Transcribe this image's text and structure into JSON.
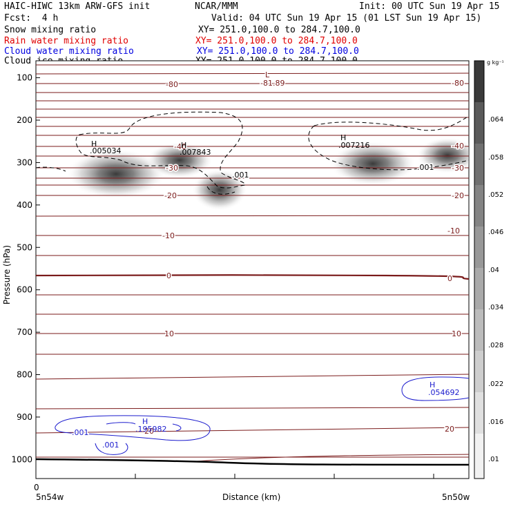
{
  "header": {
    "model": "HAIC-HIWC 13km ARW-GFS init",
    "org": "NCAR/MMM",
    "init": "Init: 00 UTC Sun 19 Apr 15",
    "fcst": "Fcst:  4 h",
    "valid": "Valid: 04 UTC Sun 19 Apr 15 (01 LST Sun 19 Apr 15)"
  },
  "fields": [
    {
      "label": "Snow mixing ratio",
      "xy": "XY= 251.0,100.0 to 284.7,100.0",
      "color": "#000000"
    },
    {
      "label": "Rain water mixing ratio",
      "xy": "XY= 251.0,100.0 to 284.7,100.0",
      "color": "#ff0000"
    },
    {
      "label": "Cloud water mixing ratio",
      "xy": "XY= 251.0,100.0 to 284.7,100.0",
      "color": "#0000ff"
    },
    {
      "label": "Cloud ice mixing ratio",
      "xy": "XY= 251.0,100.0 to 284.7,100.0",
      "color": "#000000"
    }
  ],
  "chart_data": {
    "type": "contour",
    "xlabel": "Distance (km)",
    "ylabel": "Pressure (hPa)",
    "x_tick_labels": [
      "0"
    ],
    "x_end_labels": [
      "5n54w",
      "5n50w"
    ],
    "ylim": [
      1045,
      60
    ],
    "y_ticks": [
      100,
      200,
      300,
      400,
      500,
      600,
      700,
      800,
      900,
      1000
    ],
    "colorbar": {
      "unit": "g kg⁻¹",
      "levels": [
        ".064",
        ".058",
        ".052",
        ".046",
        ".04",
        ".034",
        ".028",
        ".022",
        ".016",
        ".01"
      ]
    },
    "temperature_contours": [
      {
        "level": -80,
        "label": "-80"
      },
      {
        "level": -40,
        "label": "-40"
      },
      {
        "level": -30,
        "label": "-30"
      },
      {
        "level": -20,
        "label": "-20"
      },
      {
        "level": -10,
        "label": "-10"
      },
      {
        "level": 0,
        "label": "0"
      },
      {
        "level": 10,
        "label": "10"
      },
      {
        "level": 20,
        "label": "20"
      }
    ],
    "annotations": [
      {
        "text": "L",
        "color": "#8b1a1a"
      },
      {
        "text": "-81.89",
        "color": "#8b1a1a"
      },
      {
        "text": "H",
        "color": "#000000"
      },
      {
        "text": ".005034",
        "color": "#000000"
      },
      {
        "text": "H",
        "color": "#000000"
      },
      {
        "text": ".007843",
        "color": "#000000"
      },
      {
        "text": "H",
        "color": "#000000"
      },
      {
        "text": ".007216",
        "color": "#000000"
      },
      {
        "text": ".001",
        "color": "#000000"
      },
      {
        "text": ".001",
        "color": "#000000"
      },
      {
        "text": "H",
        "color": "#1a1acd"
      },
      {
        "text": ".195982",
        "color": "#1a1acd"
      },
      {
        "text": ".001",
        "color": "#1a1acd"
      },
      {
        "text": ".001",
        "color": "#1a1acd"
      },
      {
        "text": "H",
        "color": "#1a1acd"
      },
      {
        "text": ".054692",
        "color": "#1a1acd"
      }
    ]
  }
}
